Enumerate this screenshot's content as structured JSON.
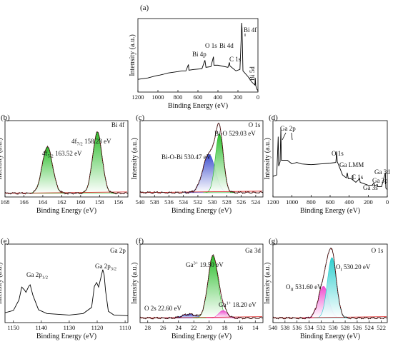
{
  "chart_data": [
    {
      "id": "a",
      "panel_label": "(a)",
      "type": "line",
      "xlabel": "Binding Energy (eV)",
      "ylabel": "Intensity (a.u.)",
      "xlim": [
        1200,
        0
      ],
      "xticks": [
        1200,
        1000,
        800,
        600,
        400,
        200,
        0
      ],
      "series": [
        {
          "color": "#000000",
          "points": [
            [
              1200,
              0.18
            ],
            [
              1100,
              0.2
            ],
            [
              1020,
              0.23
            ],
            [
              980,
              0.24
            ],
            [
              950,
              0.25
            ],
            [
              900,
              0.27
            ],
            [
              800,
              0.29
            ],
            [
              760,
              0.3
            ],
            [
              720,
              0.3
            ],
            [
              695,
              0.39
            ],
            [
              690,
              0.31
            ],
            [
              640,
              0.32
            ],
            [
              560,
              0.33
            ],
            [
              530,
              0.45
            ],
            [
              520,
              0.35
            ],
            [
              470,
              0.36
            ],
            [
              445,
              0.5
            ],
            [
              440,
              0.38
            ],
            [
              400,
              0.38
            ],
            [
              300,
              0.35
            ],
            [
              285,
              0.42
            ],
            [
              280,
              0.37
            ],
            [
              220,
              0.3
            ],
            [
              180,
              0.32
            ],
            [
              165,
              0.86
            ],
            [
              162,
              0.98
            ],
            [
              159,
              0.9
            ],
            [
              150,
              0.3
            ],
            [
              100,
              0.22
            ],
            [
              60,
              0.14
            ],
            [
              30,
              0.1
            ],
            [
              27,
              0.2
            ],
            [
              22,
              0.09
            ],
            [
              10,
              0.04
            ],
            [
              0,
              0.02
            ]
          ]
        }
      ],
      "annotations": [
        {
          "text": "Bi 4f",
          "x": 150,
          "y": 1.0
        },
        {
          "text": "O 1s",
          "x": 530,
          "y": 0.66
        },
        {
          "text": "Bi 4d",
          "x": 445,
          "y": 0.66
        },
        {
          "text": "Bi 4p",
          "x": 690,
          "y": 0.52
        },
        {
          "text": "C 1s",
          "x": 285,
          "y": 0.48
        },
        {
          "text": "Bi 5d",
          "x": 27,
          "y": 0.38
        }
      ]
    },
    {
      "id": "b",
      "panel_label": "(b)",
      "type": "line",
      "title": "Bi 4f",
      "xlabel": "Binding Energy (eV)",
      "ylabel": "Intensity (a.u.)",
      "xlim": [
        168,
        155
      ],
      "xticks": [
        168,
        166,
        164,
        162,
        160,
        158,
        156
      ],
      "baseline": 0.05,
      "peaks": [
        {
          "center": 163.52,
          "height": 0.63,
          "width": 0.55,
          "fill": "#22bb22",
          "label": "4f5/2 163.52 eV"
        },
        {
          "center": 158.23,
          "height": 0.83,
          "width": 0.5,
          "fill": "#22bb22",
          "label": "4f7/2 158.23 eV"
        }
      ],
      "annotations": [
        {
          "text": "4f",
          "sub": "5/2",
          "rest": " 163.52 eV"
        },
        {
          "text": "4f",
          "sub": "7/2",
          "rest": " 158.23 eV"
        }
      ]
    },
    {
      "id": "c",
      "panel_label": "(c)",
      "type": "line",
      "title": "O 1s",
      "xlabel": "Binding Energy (eV)",
      "ylabel": "Intensity (a.u.)",
      "xlim": [
        540,
        523
      ],
      "xticks": [
        540,
        538,
        536,
        534,
        532,
        530,
        528,
        526,
        524
      ],
      "baseline": 0.06,
      "peaks": [
        {
          "center": 530.47,
          "height": 0.52,
          "width": 0.85,
          "fill": "#3344cc",
          "label": "Bi-O-Bi 530.47 eV"
        },
        {
          "center": 529.03,
          "height": 0.8,
          "width": 0.55,
          "fill": "#22bb22",
          "label": "Bi-O 529.03 eV"
        }
      ],
      "annotations": [
        {
          "text": "Bi-O 529.03 eV"
        },
        {
          "text": "Bi-O-Bi 530.47 eV"
        }
      ]
    },
    {
      "id": "d",
      "panel_label": "(d)",
      "type": "line",
      "xlabel": "Binding Energy (eV)",
      "ylabel": "Intensity (a.u.)",
      "xlim": [
        1200,
        0
      ],
      "xticks": [
        1200,
        1000,
        800,
        600,
        400,
        200,
        0
      ],
      "series": [
        {
          "color": "#000000",
          "points": [
            [
              1200,
              0.28
            ],
            [
              1160,
              0.3
            ],
            [
              1145,
              0.82
            ],
            [
              1140,
              0.42
            ],
            [
              1125,
              0.48
            ],
            [
              1117,
              0.93
            ],
            [
              1112,
              0.5
            ],
            [
              1050,
              0.5
            ],
            [
              1000,
              0.45
            ],
            [
              950,
              0.47
            ],
            [
              900,
              0.45
            ],
            [
              800,
              0.44
            ],
            [
              700,
              0.45
            ],
            [
              600,
              0.46
            ],
            [
              540,
              0.47
            ],
            [
              531,
              0.62
            ],
            [
              525,
              0.48
            ],
            [
              500,
              0.4
            ],
            [
              470,
              0.3
            ],
            [
              430,
              0.26
            ],
            [
              420,
              0.33
            ],
            [
              410,
              0.25
            ],
            [
              380,
              0.25
            ],
            [
              330,
              0.2
            ],
            [
              290,
              0.25
            ],
            [
              285,
              0.2
            ],
            [
              200,
              0.16
            ],
            [
              160,
              0.16
            ],
            [
              140,
              0.19
            ],
            [
              130,
              0.15
            ],
            [
              105,
              0.17
            ],
            [
              100,
              0.14
            ],
            [
              60,
              0.14
            ],
            [
              20,
              0.33
            ],
            [
              15,
              0.12
            ],
            [
              0,
              0.1
            ]
          ]
        }
      ],
      "annotations": [
        {
          "text": "Ga 2p"
        },
        {
          "text": "O 1s"
        },
        {
          "text": "Ga LMM"
        },
        {
          "text": "C 1s"
        },
        {
          "text": "Ga 3d"
        },
        {
          "text": "Ga 3p"
        },
        {
          "text": "Ga 3s"
        }
      ]
    },
    {
      "id": "e",
      "panel_label": "(e)",
      "type": "line",
      "title": "Ga 2p",
      "xlabel": "Binding Energy (eV)",
      "ylabel": "Intensity (a.u.)",
      "xlim": [
        1153,
        1109
      ],
      "xticks": [
        1150,
        1140,
        1130,
        1120,
        1110
      ],
      "series": [
        {
          "color": "#000000",
          "points": [
            [
              1153,
              0.13
            ],
            [
              1150,
              0.16
            ],
            [
              1148,
              0.3
            ],
            [
              1147,
              0.47
            ],
            [
              1146,
              0.43
            ],
            [
              1145.5,
              0.4
            ],
            [
              1144.5,
              0.48
            ],
            [
              1144,
              0.5
            ],
            [
              1143,
              0.36
            ],
            [
              1141,
              0.17
            ],
            [
              1138,
              0.12
            ],
            [
              1130,
              0.1
            ],
            [
              1125,
              0.12
            ],
            [
              1122,
              0.2
            ],
            [
              1121,
              0.48
            ],
            [
              1120.2,
              0.53
            ],
            [
              1119.5,
              0.47
            ],
            [
              1118.5,
              0.62
            ],
            [
              1118,
              0.7
            ],
            [
              1117.5,
              0.63
            ],
            [
              1117,
              0.42
            ],
            [
              1116,
              0.15
            ],
            [
              1114,
              0.1
            ],
            [
              1109,
              0.09
            ]
          ]
        }
      ],
      "annotations": [
        {
          "text": "Ga 2p",
          "sub": "1/2"
        },
        {
          "text": "Ga 2p",
          "sub": "3/2"
        }
      ]
    },
    {
      "id": "f",
      "panel_label": "(f)",
      "type": "line",
      "title": "Ga 3d",
      "xlabel": "Binding Energy (eV)",
      "ylabel": "Intensity (a.u.)",
      "xlim": [
        29,
        13
      ],
      "xticks": [
        28,
        26,
        24,
        22,
        20,
        18,
        16,
        14
      ],
      "baseline": 0.06,
      "peaks": [
        {
          "center": 22.6,
          "height": 0.05,
          "width": 0.9,
          "fill": "#3344cc",
          "label": "O 2s 22.60 eV"
        },
        {
          "center": 19.5,
          "height": 0.82,
          "width": 0.65,
          "fill": "#22bb22",
          "label": "Ga3+ 19.50 eV"
        },
        {
          "center": 18.2,
          "height": 0.1,
          "width": 0.55,
          "fill": "#ee44cc",
          "label": "Ga1+ 18.20 eV"
        }
      ],
      "annotations": [
        {
          "text": "Ga",
          "sup": "3+",
          "rest": " 19.50 eV"
        },
        {
          "text": "O 2s 22.60 eV"
        },
        {
          "text": "Ga",
          "sup": "1+",
          "rest": " 18.20 eV"
        }
      ]
    },
    {
      "id": "g",
      "panel_label": "(g)",
      "type": "line",
      "title": "O 1s",
      "xlabel": "Binding Energy (eV)",
      "ylabel": "Intensity (a.u.)",
      "xlim": [
        540,
        521
      ],
      "xticks": [
        540,
        538,
        536,
        534,
        532,
        530,
        528,
        526,
        524,
        522
      ],
      "baseline": 0.06,
      "peaks": [
        {
          "center": 531.6,
          "height": 0.42,
          "width": 0.85,
          "fill": "#ee44cc",
          "label": "OII 531.60 eV"
        },
        {
          "center": 530.2,
          "height": 0.8,
          "width": 0.75,
          "fill": "#22cccc",
          "label": "OI 530.20 eV"
        }
      ],
      "annotations": [
        {
          "text": "O",
          "sub": "I",
          "rest": " 530.20 eV"
        },
        {
          "text": "O",
          "sub": "II",
          "rest": " 531.60 eV"
        }
      ]
    }
  ]
}
